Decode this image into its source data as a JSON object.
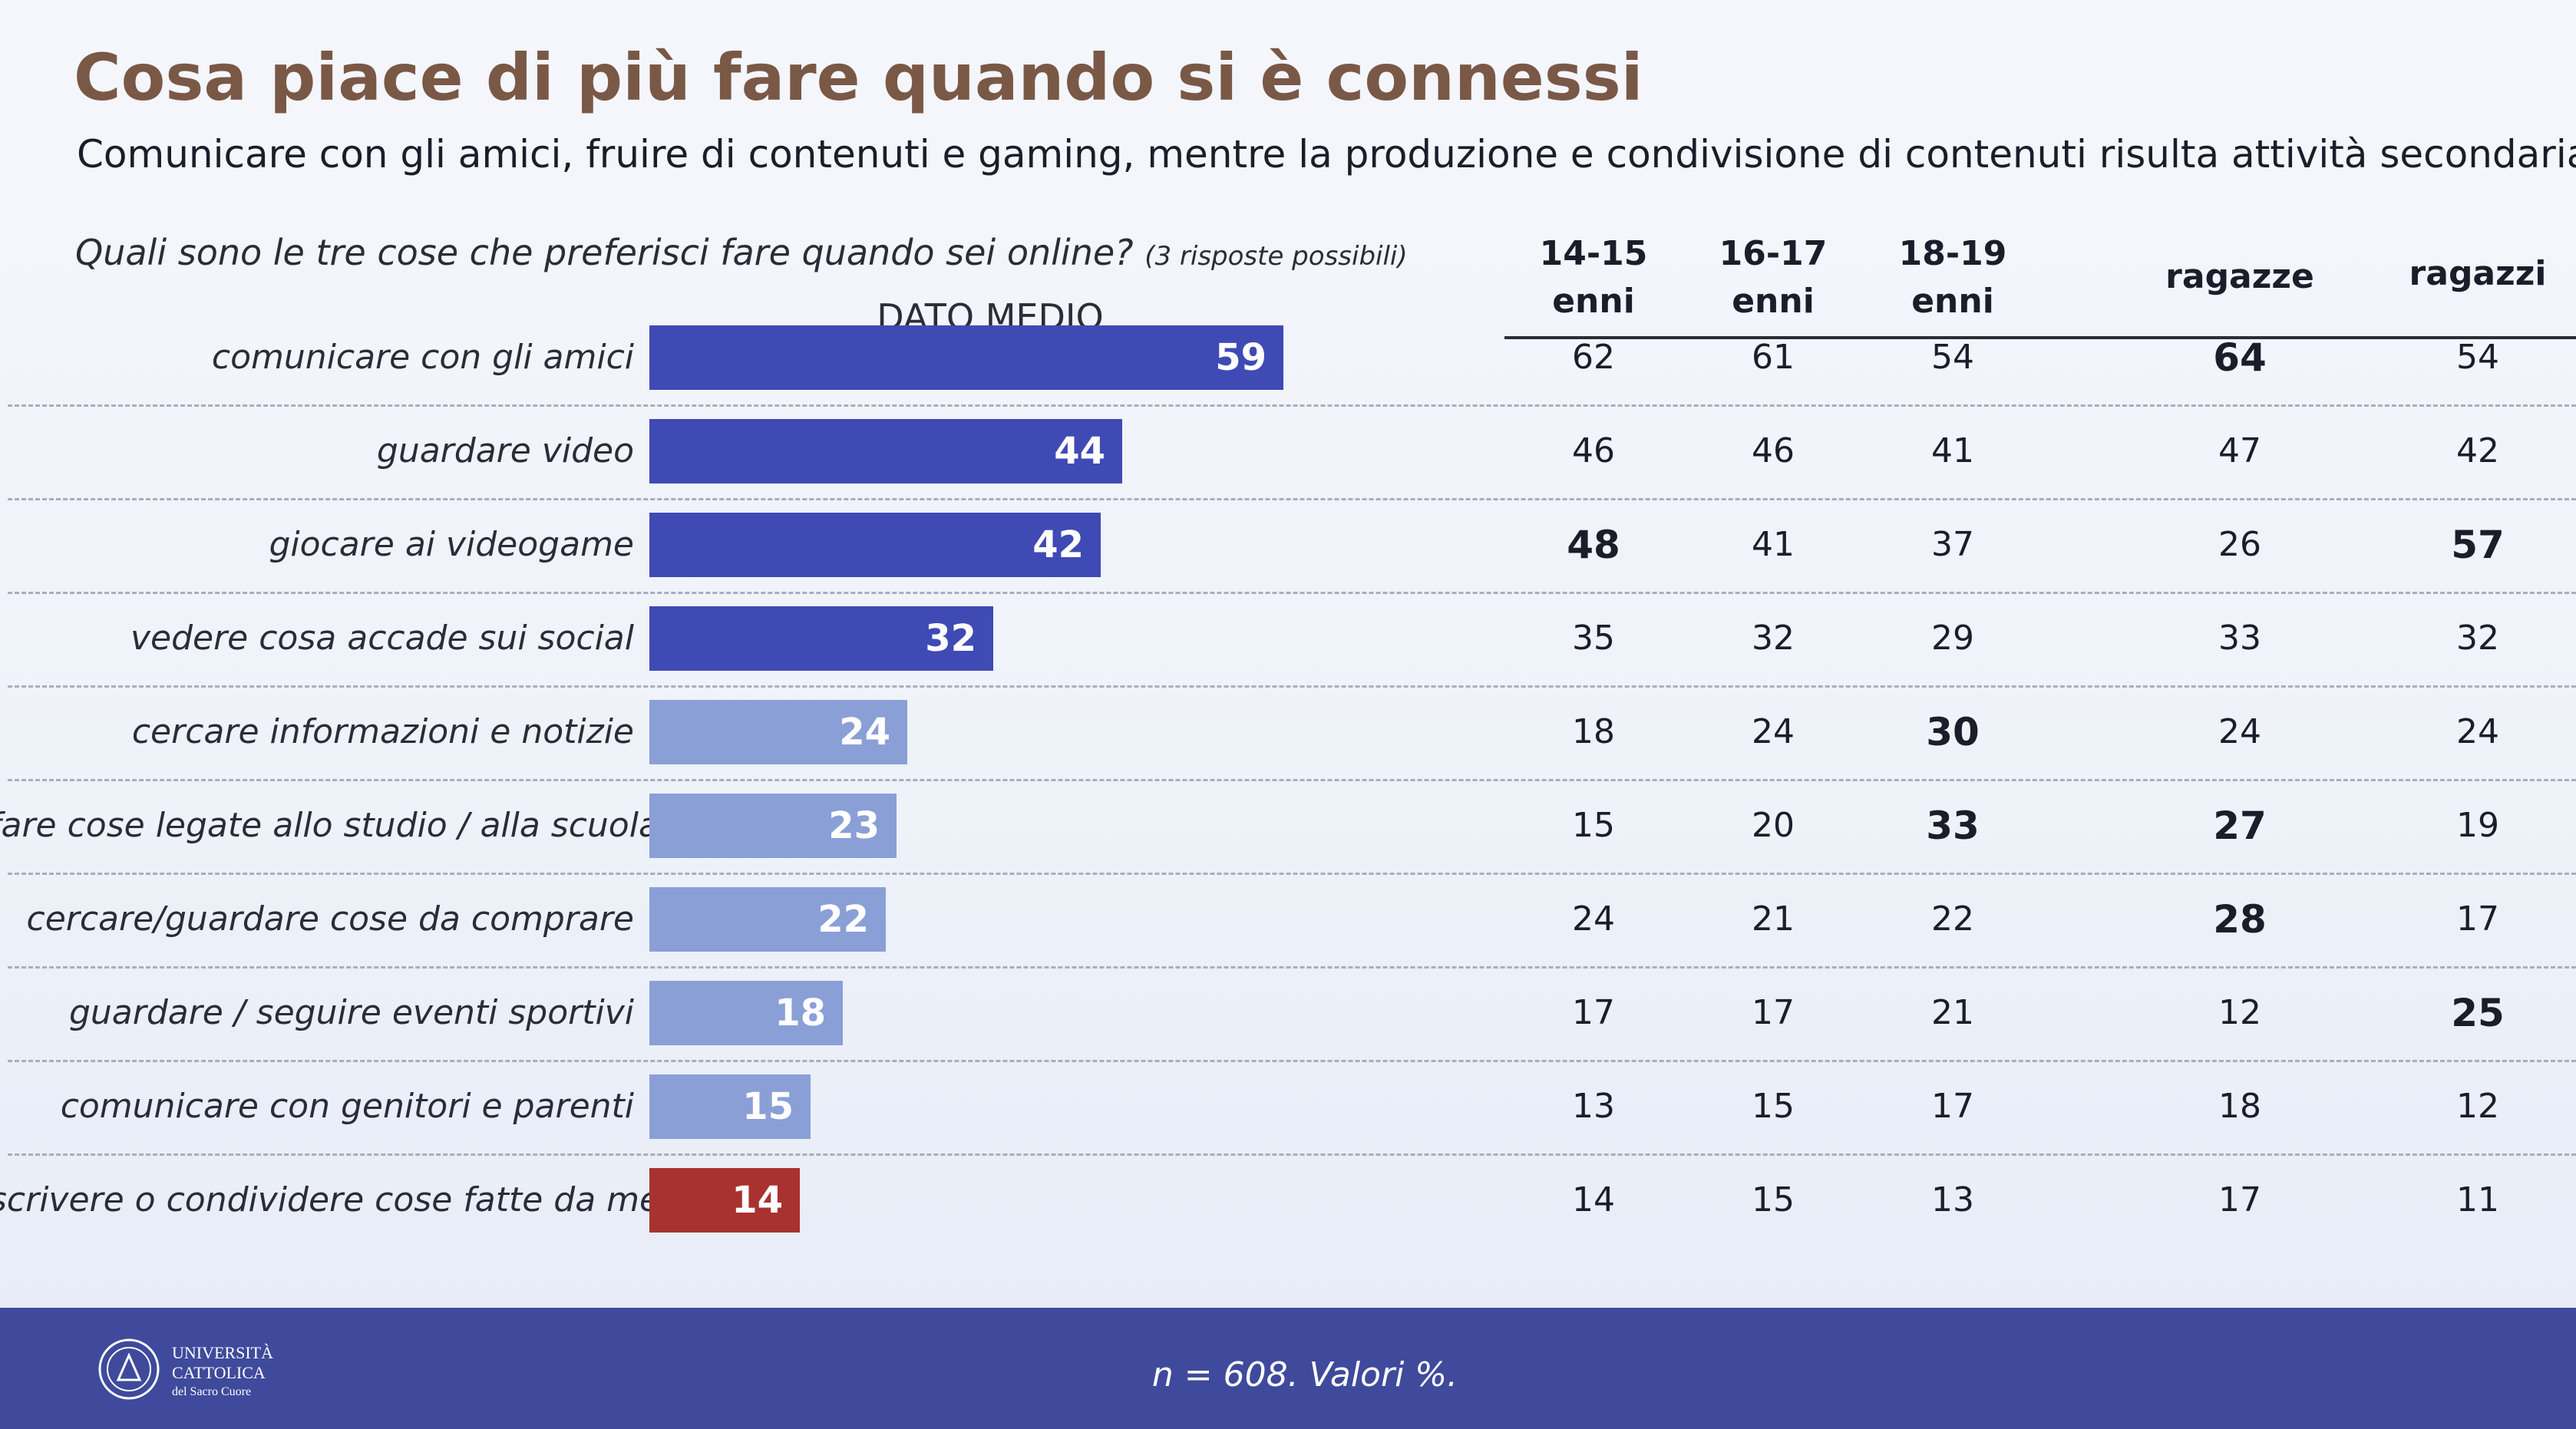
{
  "title": "Cosa piace di più fare quando si è connessi",
  "subtitle": "Comunicare con gli amici, fruire di contenuti e gaming, mentre la produzione e condivisione di contenuti risulta attività secondaria",
  "question": "Quali sono le tre cose che preferisci fare quando sei online?",
  "question_note": "(3 risposte possibili)",
  "bar_header": "DATO MEDIO",
  "columns": [
    {
      "line1": "14-15",
      "line2": "enni"
    },
    {
      "line1": "16-17",
      "line2": "enni"
    },
    {
      "line1": "18-19",
      "line2": "enni"
    },
    {
      "line1": "ragazze",
      "line2": ""
    },
    {
      "line1": "ragazzi",
      "line2": ""
    }
  ],
  "footer_note": "n = 608. Valori %.",
  "logo": {
    "line1": "UNIVERSITÀ",
    "line2": "CATTOLICA",
    "line3": "del Sacro Cuore"
  },
  "colors": {
    "bar_dark": "#3f4ab5",
    "bar_light": "#8a9fd6",
    "bar_highlight": "#a8322f",
    "title": "#7a5846",
    "footer": "#3f4a9c"
  },
  "chart_data": {
    "type": "bar",
    "orientation": "horizontal",
    "title": "DATO MEDIO",
    "categories": [
      "comunicare con gli amici",
      "guardare video",
      "giocare ai videogame",
      "vedere cosa accade sui social",
      "cercare informazioni e notizie",
      "fare cose legate allo studio / alla scuola",
      "cercare/guardare cose da comprare",
      "guardare / seguire eventi sportivi",
      "comunicare con genitori e parenti",
      "scrivere o condividere cose fatte da me"
    ],
    "values": [
      59,
      44,
      42,
      32,
      24,
      23,
      22,
      18,
      15,
      14
    ],
    "bar_colors": [
      "dark",
      "dark",
      "dark",
      "dark",
      "light",
      "light",
      "light",
      "light",
      "light",
      "highlight"
    ],
    "xlim": [
      0,
      100
    ],
    "grid": false,
    "legend": "none"
  },
  "table": {
    "rows": [
      {
        "values": [
          "62",
          "61",
          "54",
          "64",
          "54"
        ],
        "bold": [
          false,
          false,
          false,
          true,
          false
        ]
      },
      {
        "values": [
          "46",
          "46",
          "41",
          "47",
          "42"
        ],
        "bold": [
          false,
          false,
          false,
          false,
          false
        ]
      },
      {
        "values": [
          "48",
          "41",
          "37",
          "26",
          "57"
        ],
        "bold": [
          true,
          false,
          false,
          false,
          true
        ]
      },
      {
        "values": [
          "35",
          "32",
          "29",
          "33",
          "32"
        ],
        "bold": [
          false,
          false,
          false,
          false,
          false
        ]
      },
      {
        "values": [
          "18",
          "24",
          "30",
          "24",
          "24"
        ],
        "bold": [
          false,
          false,
          true,
          false,
          false
        ]
      },
      {
        "values": [
          "15",
          "20",
          "33",
          "27",
          "19"
        ],
        "bold": [
          false,
          false,
          true,
          true,
          false
        ]
      },
      {
        "values": [
          "24",
          "21",
          "22",
          "28",
          "17"
        ],
        "bold": [
          false,
          false,
          false,
          true,
          false
        ]
      },
      {
        "values": [
          "17",
          "17",
          "21",
          "12",
          "25"
        ],
        "bold": [
          false,
          false,
          false,
          false,
          true
        ]
      },
      {
        "values": [
          "13",
          "15",
          "17",
          "18",
          "12"
        ],
        "bold": [
          false,
          false,
          false,
          false,
          false
        ]
      },
      {
        "values": [
          "14",
          "15",
          "13",
          "17",
          "11"
        ],
        "bold": [
          false,
          false,
          false,
          false,
          false
        ]
      }
    ]
  }
}
